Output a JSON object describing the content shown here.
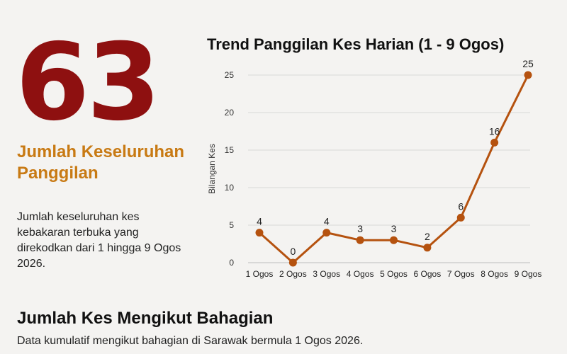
{
  "summary": {
    "total": "63",
    "total_label": "Jumlah Keseluruhan Panggilan",
    "description": "Jumlah keseluruhan kes kebakaran terbuka yang direkodkan dari 1 hingga 9 Ogos 2026."
  },
  "section": {
    "title": "Jumlah Kes Mengikut Bahagian",
    "subtitle": "Data kumulatif mengikut bahagian di Sarawak bermula 1 Ogos 2026."
  },
  "colors": {
    "accent_dark_red": "#8e1010",
    "accent_orange": "#c87a14",
    "series_line": "#b5520f",
    "grid": "#d8d8d8"
  },
  "chart_data": {
    "type": "line",
    "title": "Trend Panggilan Kes Harian (1 - 9 Ogos)",
    "xlabel": "",
    "ylabel": "Bilangan Kes",
    "categories": [
      "1 Ogos",
      "2 Ogos",
      "3 Ogos",
      "4 Ogos",
      "5 Ogos",
      "6 Ogos",
      "7 Ogos",
      "8 Ogos",
      "9 Ogos"
    ],
    "values": [
      4,
      0,
      4,
      3,
      3,
      2,
      6,
      16,
      25
    ],
    "ylim": [
      0,
      25
    ],
    "yticks": [
      0,
      5,
      10,
      15,
      20,
      25
    ],
    "grid": true,
    "data_labels": true
  }
}
